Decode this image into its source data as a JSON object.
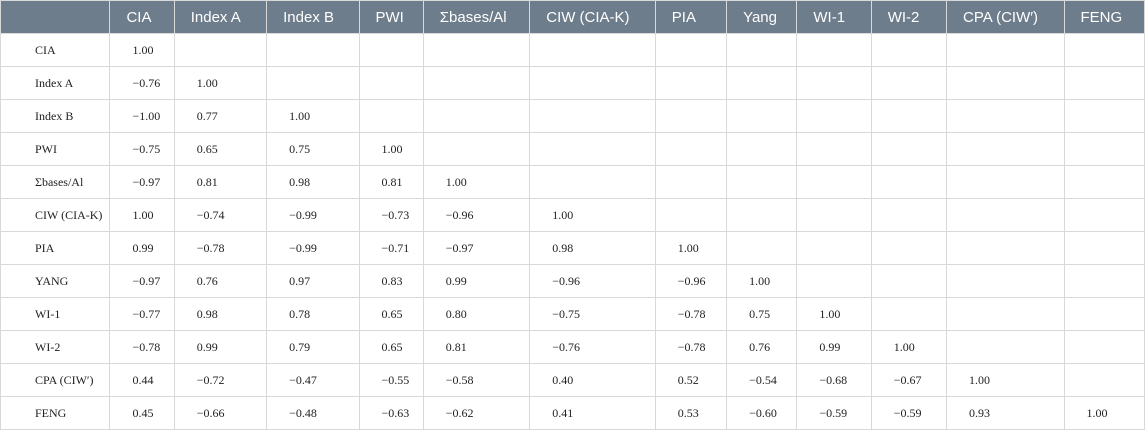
{
  "table": {
    "corner": "",
    "columns": [
      "CIA",
      "Index A",
      "Index B",
      "PWI",
      "Σbases/Al",
      "CIW (CIA-K)",
      "PIA",
      "Yang",
      "WI-1",
      "WI-2",
      "CPA (CIW′)",
      "FENG"
    ],
    "rows": [
      {
        "label": "CIA",
        "cells": [
          "1.00",
          "",
          "",
          "",
          "",
          "",
          "",
          "",
          "",
          "",
          "",
          ""
        ]
      },
      {
        "label": "Index A",
        "cells": [
          "−0.76",
          "1.00",
          "",
          "",
          "",
          "",
          "",
          "",
          "",
          "",
          "",
          ""
        ]
      },
      {
        "label": "Index B",
        "cells": [
          "−1.00",
          "0.77",
          "1.00",
          "",
          "",
          "",
          "",
          "",
          "",
          "",
          "",
          ""
        ]
      },
      {
        "label": "PWI",
        "cells": [
          "−0.75",
          "0.65",
          "0.75",
          "1.00",
          "",
          "",
          "",
          "",
          "",
          "",
          "",
          ""
        ]
      },
      {
        "label": "Σbases/Al",
        "cells": [
          "−0.97",
          "0.81",
          "0.98",
          "0.81",
          "1.00",
          "",
          "",
          "",
          "",
          "",
          "",
          ""
        ]
      },
      {
        "label": "CIW (CIA-K)",
        "cells": [
          "1.00",
          "−0.74",
          "−0.99",
          "−0.73",
          "−0.96",
          "1.00",
          "",
          "",
          "",
          "",
          "",
          ""
        ]
      },
      {
        "label": "PIA",
        "cells": [
          "0.99",
          "−0.78",
          "−0.99",
          "−0.71",
          "−0.97",
          "0.98",
          "1.00",
          "",
          "",
          "",
          "",
          ""
        ]
      },
      {
        "label": "YANG",
        "cells": [
          "−0.97",
          "0.76",
          "0.97",
          "0.83",
          "0.99",
          "−0.96",
          "−0.96",
          "1.00",
          "",
          "",
          "",
          ""
        ]
      },
      {
        "label": "WI-1",
        "cells": [
          "−0.77",
          "0.98",
          "0.78",
          "0.65",
          "0.80",
          "−0.75",
          "−0.78",
          "0.75",
          "1.00",
          "",
          "",
          ""
        ]
      },
      {
        "label": "WI-2",
        "cells": [
          "−0.78",
          "0.99",
          "0.79",
          "0.65",
          "0.81",
          "−0.76",
          "−0.78",
          "0.76",
          "0.99",
          "1.00",
          "",
          ""
        ]
      },
      {
        "label": "CPA (CIW′)",
        "cells": [
          "0.44",
          "−0.72",
          "−0.47",
          "−0.55",
          "−0.58",
          "0.40",
          "0.52",
          "−0.54",
          "−0.68",
          "−0.67",
          "1.00",
          ""
        ]
      },
      {
        "label": "FENG",
        "cells": [
          "0.45",
          "−0.66",
          "−0.48",
          "−0.63",
          "−0.62",
          "0.41",
          "0.53",
          "−0.60",
          "−0.59",
          "−0.59",
          "0.93",
          "1.00"
        ]
      }
    ]
  },
  "colors": {
    "header_bg": "#6d7d8c",
    "header_text": "#ffffff",
    "grid_line": "#d9d9d9",
    "body_text": "#222222"
  }
}
